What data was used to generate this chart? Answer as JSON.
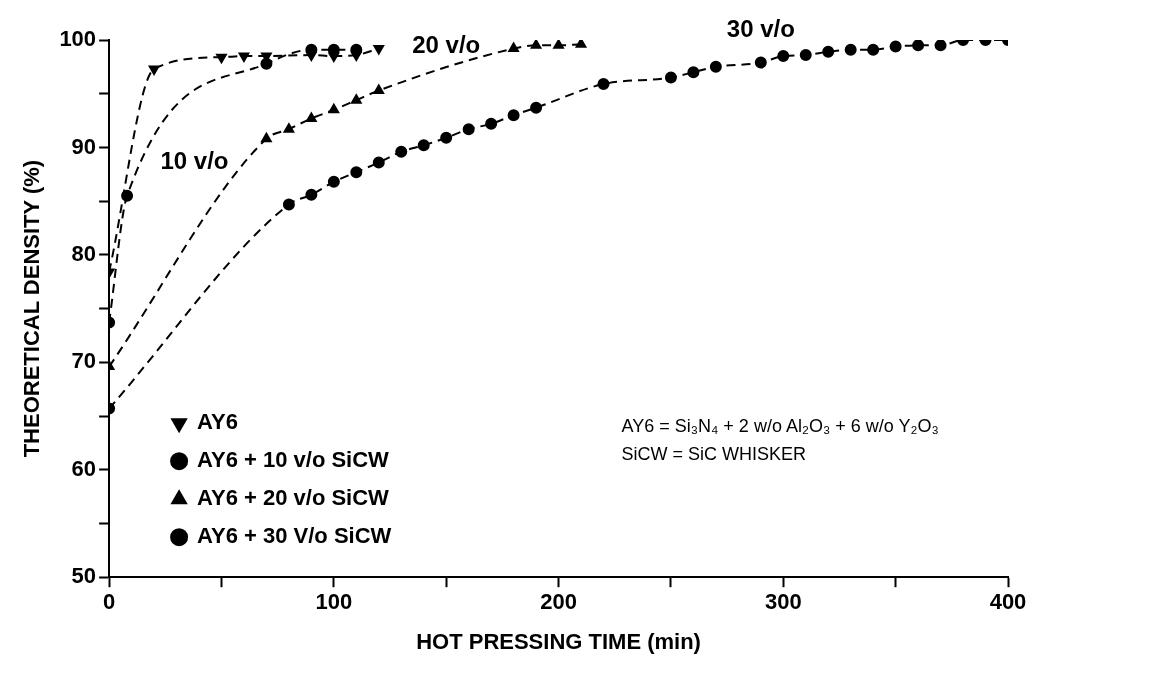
{
  "chart_data": {
    "type": "line",
    "xlabel": "HOT PRESSING TIME (min)",
    "ylabel": "THEORETICAL DENSITY (%)",
    "xlim": [
      0,
      400
    ],
    "ylim": [
      50,
      100
    ],
    "xticks": [
      0,
      {
        "value": 50,
        "label": null
      },
      100,
      {
        "value": 150,
        "label": null
      },
      200,
      {
        "value": 250,
        "label": null
      },
      300,
      {
        "value": 350,
        "label": null
      },
      400
    ],
    "yticks": [
      50,
      {
        "value": 55,
        "label": null
      },
      60,
      {
        "value": 65,
        "label": null
      },
      70,
      {
        "value": 75,
        "label": null
      },
      80,
      {
        "value": 85,
        "label": null
      },
      90,
      {
        "value": 95,
        "label": null
      },
      100
    ],
    "grid": false,
    "legend": "bottom left",
    "line_style": "dashed",
    "series": [
      {
        "name": "AY6",
        "color": "#000000",
        "marker": "triangle",
        "x": [
          0,
          20,
          50,
          60,
          70,
          90,
          100,
          110,
          120
        ],
        "values": [
          78.4,
          97.3,
          98.4,
          98.5,
          98.5,
          98.6,
          98.5,
          98.6,
          99.2
        ]
      },
      {
        "name": "AY6 + 10 v/o SiCW",
        "color": "#000000",
        "marker": "circle",
        "x": [
          0,
          8,
          70,
          90,
          100,
          110
        ],
        "values": [
          73.7,
          85.5,
          97.8,
          99.1,
          99.1,
          99.1
        ]
      },
      {
        "name": "AY6 + 20 v/o SiCW",
        "color": "#000000",
        "marker": "triangle",
        "x": [
          0,
          70,
          80,
          90,
          100,
          110,
          120,
          180,
          190,
          200,
          210
        ],
        "values": [
          69.6,
          90.8,
          91.7,
          92.7,
          93.5,
          94.4,
          95.3,
          99.2,
          99.5,
          99.5,
          99.6
        ]
      },
      {
        "name": "AY6 + 30 V/o SiCW",
        "color": "#000000",
        "marker": "circle",
        "x": [
          0,
          80,
          90,
          100,
          110,
          120,
          130,
          140,
          150,
          160,
          170,
          180,
          190,
          220,
          250,
          260,
          270,
          290,
          300,
          310,
          320,
          330,
          340,
          350,
          360,
          370,
          380,
          390,
          400
        ],
        "values": [
          65.7,
          84.7,
          85.6,
          86.8,
          87.7,
          88.6,
          89.6,
          90.2,
          90.9,
          91.7,
          92.2,
          93.0,
          93.7,
          95.9,
          96.5,
          97.0,
          97.5,
          97.9,
          98.5,
          98.6,
          98.9,
          99.1,
          99.1,
          99.4,
          99.5,
          99.5,
          100.0,
          100.0,
          100.0
        ]
      }
    ],
    "annotations": [
      "10 v/o",
      "20 v/o",
      "30 v/o",
      "AY6 = Si₃N₄ + 2 w/o Al₂O₃ + 6 w/o Y₂O₃",
      "SiCW = SiC WHISKER"
    ]
  }
}
